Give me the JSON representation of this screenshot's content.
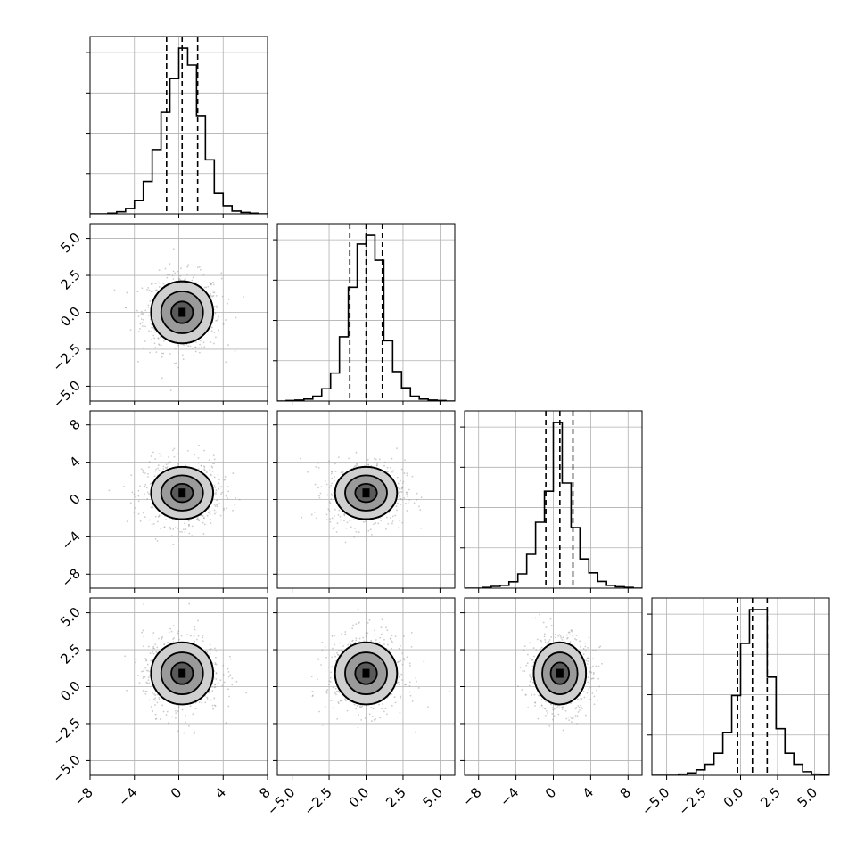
{
  "chart_data": {
    "type": "corner",
    "grid": true,
    "legend": "none",
    "colors": {
      "line": "#000000",
      "grid": "#b0b0b0",
      "scatter": "#9a9a9a",
      "frame": "#000000"
    },
    "dimensions": 4,
    "ranges": [
      [
        -8,
        8
      ],
      [
        -6,
        6
      ],
      [
        -9.5,
        9.5
      ],
      [
        -6,
        6
      ]
    ],
    "ticks": [
      [
        -8,
        -4,
        0,
        4,
        8
      ],
      [
        -5,
        -2.5,
        0,
        2.5,
        5
      ],
      [
        -8,
        -4,
        0,
        4,
        8
      ],
      [
        -5,
        -2.5,
        0,
        2.5,
        5
      ]
    ],
    "tick_labels": [
      [
        "−8",
        "−4",
        "0",
        "4",
        "8"
      ],
      [
        "−5.0",
        "−2.5",
        "0.0",
        "2.5",
        "5.0"
      ],
      [
        "−8",
        "−4",
        "0",
        "4",
        "8"
      ],
      [
        "−5.0",
        "−2.5",
        "0.0",
        "2.5",
        "5.0"
      ]
    ],
    "centers": [
      0.3,
      0.0,
      0.7,
      0.9
    ],
    "spreads": [
      1.4,
      1.05,
      1.4,
      1.05
    ],
    "quantiles": [
      [
        -1.1,
        0.3,
        1.7
      ],
      [
        -1.1,
        0.0,
        1.1
      ],
      [
        -0.8,
        0.7,
        2.1
      ],
      [
        -0.2,
        0.8,
        1.8
      ]
    ],
    "histograms": [
      {
        "bin_edges": [
          -8,
          -7.2,
          -6.4,
          -5.6,
          -4.8,
          -4.0,
          -3.2,
          -2.4,
          -1.6,
          -0.8,
          0.0,
          0.8,
          1.6,
          2.4,
          3.2,
          4.0,
          4.8,
          5.6,
          6.4,
          7.2,
          8.0
        ],
        "counts": [
          0,
          0,
          1,
          3,
          8,
          20,
          48,
          95,
          150,
          200,
          245,
          220,
          145,
          80,
          30,
          12,
          4,
          2,
          1,
          0
        ]
      },
      {
        "bin_edges": [
          -6,
          -5.4,
          -4.8,
          -4.2,
          -3.6,
          -3.0,
          -2.4,
          -1.8,
          -1.2,
          -0.6,
          0.0,
          0.6,
          1.2,
          1.8,
          2.4,
          3.0,
          3.6,
          4.2,
          4.8,
          5.4,
          6.0
        ],
        "counts": [
          0,
          1,
          2,
          4,
          10,
          25,
          57,
          131,
          232,
          320,
          338,
          287,
          123,
          60,
          27,
          10,
          4,
          2,
          1,
          0
        ]
      },
      {
        "bin_edges": [
          -9.5,
          -8.55,
          -7.6,
          -6.65,
          -5.7,
          -4.75,
          -3.8,
          -2.85,
          -1.9,
          -0.95,
          0.0,
          0.95,
          1.9,
          2.85,
          3.8,
          4.75,
          5.7,
          6.65,
          7.6,
          8.55,
          9.5
        ],
        "counts": [
          0,
          0,
          2,
          5,
          8,
          18,
          40,
          95,
          185,
          272,
          465,
          295,
          170,
          82,
          43,
          19,
          8,
          4,
          2,
          0
        ]
      },
      {
        "bin_edges": [
          -6,
          -5.4,
          -4.8,
          -4.2,
          -3.6,
          -3.0,
          -2.4,
          -1.8,
          -1.2,
          -0.6,
          0.0,
          0.6,
          1.2,
          1.8,
          2.4,
          3.0,
          3.6,
          4.2,
          4.8,
          5.4,
          6.0
        ],
        "counts": [
          0,
          0,
          0,
          2,
          4,
          9,
          18,
          36,
          70,
          130,
          215,
          270,
          270,
          160,
          76,
          36,
          18,
          6,
          2,
          1
        ]
      }
    ]
  }
}
